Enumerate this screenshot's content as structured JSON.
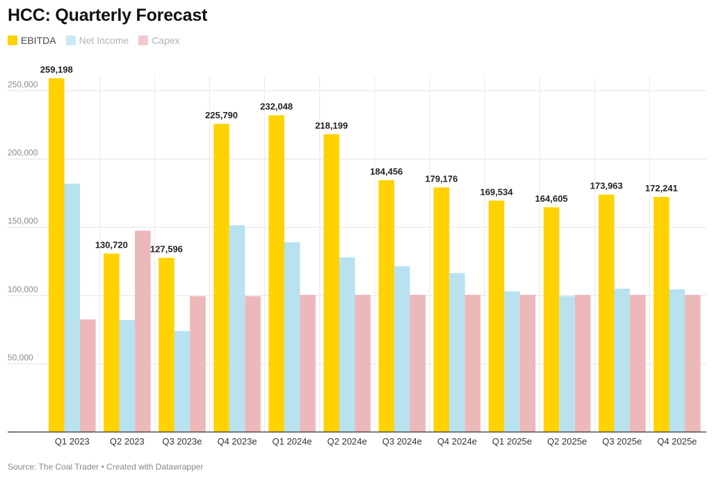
{
  "title": "HCC: Quarterly Forecast",
  "source": "Source: The Coal Trader • Created with Datawrapper",
  "chart_data": {
    "type": "bar",
    "title": "HCC: Quarterly Forecast",
    "xlabel": "",
    "ylabel": "",
    "ylim": [
      0,
      260000
    ],
    "yticks": [
      50000,
      100000,
      150000,
      200000,
      250000
    ],
    "ytick_labels": [
      "50,000",
      "100,000",
      "150,000",
      "200,000",
      "250,000"
    ],
    "grid": true,
    "legend_position": "top-left",
    "categories": [
      "Q1 2023",
      "Q2 2023",
      "Q3 2023e",
      "Q4 2023e",
      "Q1 2024e",
      "Q2 2024e",
      "Q3 2024e",
      "Q4 2024e",
      "Q1 2025e",
      "Q2 2025e",
      "Q3 2025e",
      "Q4 2025e"
    ],
    "series": [
      {
        "name": "EBITDA",
        "color": "#FFD200",
        "show_labels": true,
        "values": [
          259198,
          130720,
          127596,
          225790,
          232048,
          218199,
          184456,
          179176,
          169534,
          164605,
          173963,
          172241
        ],
        "labels": [
          "259,198",
          "130,720",
          "127,596",
          "225,790",
          "232,048",
          "218,199",
          "184,456",
          "179,176",
          "169,534",
          "164,605",
          "173,963",
          "172,241"
        ]
      },
      {
        "name": "Net Income",
        "color": "#B8E2F0",
        "show_labels": false,
        "values": [
          182000,
          82000,
          74000,
          151500,
          139000,
          128000,
          121500,
          116500,
          103000,
          99500,
          105000,
          104500
        ]
      },
      {
        "name": "Capex",
        "color": "#EDB8B9",
        "show_labels": false,
        "values": [
          82500,
          147500,
          99500,
          99500,
          100500,
          100500,
          100500,
          100500,
          100500,
          100500,
          100500,
          100500
        ]
      }
    ]
  }
}
